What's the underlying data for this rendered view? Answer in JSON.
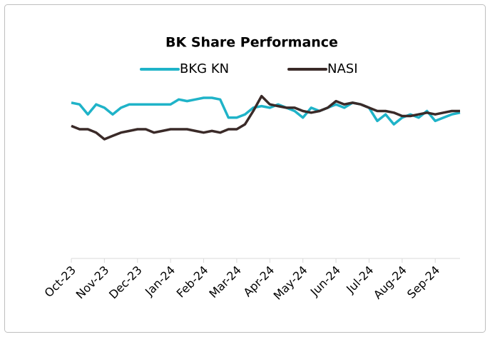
{
  "chart_data": {
    "type": "line",
    "title": "BK Share Performance",
    "categories": [
      "Oct-23",
      null,
      null,
      null,
      "Nov-23",
      null,
      null,
      null,
      "Dec-23",
      null,
      null,
      null,
      "Jan-24",
      null,
      null,
      null,
      "Feb-24",
      null,
      null,
      null,
      "Mar-24",
      null,
      null,
      null,
      "Apr-24",
      null,
      null,
      null,
      "May-24",
      null,
      null,
      null,
      "Jun-24",
      null,
      null,
      null,
      "Jul-24",
      null,
      null,
      null,
      "Aug-24",
      null,
      null,
      null,
      "Sep-24",
      null,
      null,
      null
    ],
    "series": [
      {
        "name": "BKG KN",
        "color": "#1fb3c8",
        "values": [
          94,
          93,
          87,
          93,
          91,
          87,
          91,
          93,
          93,
          93,
          93,
          93,
          93,
          96,
          95,
          96,
          97,
          97,
          96,
          85,
          85,
          87,
          91,
          92,
          91,
          93,
          91,
          89,
          85,
          91,
          89,
          91,
          93,
          91,
          94,
          93,
          91,
          83,
          87,
          81,
          85,
          87,
          85,
          89,
          83,
          85,
          87,
          88
        ]
      },
      {
        "name": "NASI",
        "color": "#3a2a28",
        "values": [
          80,
          78,
          78,
          76,
          72,
          74,
          76,
          77,
          78,
          78,
          76,
          77,
          78,
          78,
          78,
          77,
          76,
          77,
          76,
          78,
          78,
          81,
          89,
          98,
          93,
          92,
          91,
          91,
          89,
          88,
          89,
          91,
          95,
          93,
          94,
          93,
          91,
          89,
          89,
          88,
          86,
          86,
          87,
          88,
          87,
          88,
          89,
          89
        ]
      }
    ],
    "ylim": [
      0,
      100
    ],
    "legend": "top"
  }
}
